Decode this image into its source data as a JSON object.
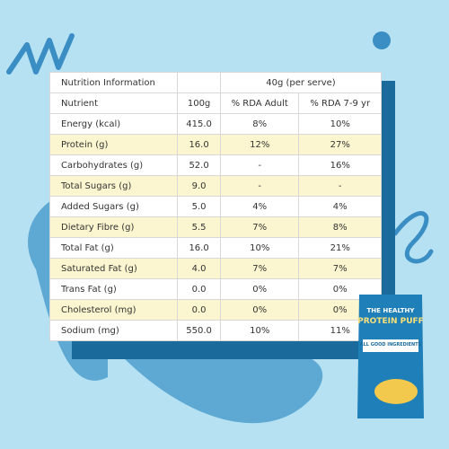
{
  "table": {
    "header": [
      [
        "Nutrition Information",
        "40g (per serve)"
      ],
      [
        "Nutrient",
        "100g",
        "% RDA Adult",
        "% RDA 7-9 yr"
      ]
    ],
    "rows": [
      [
        "Energy (kcal)",
        "415.0",
        "8%",
        "10%"
      ],
      [
        "Protein (g)",
        "16.0",
        "12%",
        "27%"
      ],
      [
        "Carbohydrates (g)",
        "52.0",
        "-",
        "16%"
      ],
      [
        "Total Sugars (g)",
        "9.0",
        "-",
        "-"
      ],
      [
        "Added Sugars (g)",
        "5.0",
        "4%",
        "4%"
      ],
      [
        "Dietary Fibre (g)",
        "5.5",
        "7%",
        "8%"
      ],
      [
        "Total Fat (g)",
        "16.0",
        "10%",
        "21%"
      ],
      [
        "Saturated Fat (g)",
        "4.0",
        "7%",
        "7%"
      ],
      [
        "Trans Fat (g)",
        "0.0",
        "0%",
        "0%"
      ],
      [
        "Cholesterol (mg)",
        "0.0",
        "0%",
        "0%"
      ],
      [
        "Sodium (mg)",
        "550.0",
        "10%",
        "11%"
      ]
    ]
  },
  "product": {
    "line1": "THE HEALTHY",
    "line2": "PROTEIN PUFF",
    "line3": "ALL GOOD INGREDIENTS"
  }
}
